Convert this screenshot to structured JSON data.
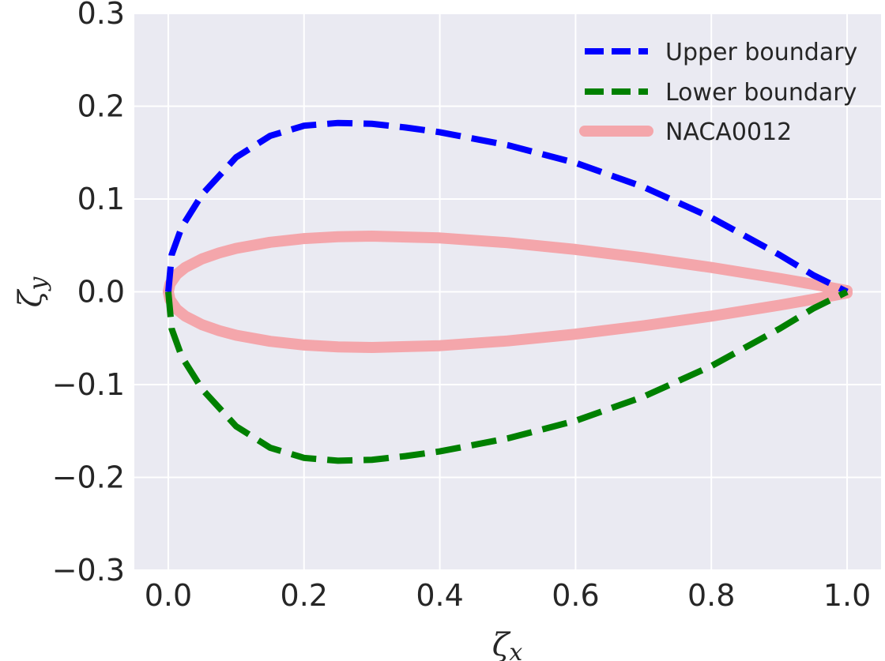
{
  "chart_data": {
    "type": "line",
    "xlabel_main": "ζ",
    "xlabel_sub": "x",
    "ylabel_main": "ζ",
    "ylabel_sub": "y",
    "xlim": [
      -0.05,
      1.05
    ],
    "ylim": [
      -0.3,
      0.3
    ],
    "xticks": [
      0.0,
      0.2,
      0.4,
      0.6,
      0.8,
      1.0
    ],
    "xtick_labels": [
      "0.0",
      "0.2",
      "0.4",
      "0.6",
      "0.8",
      "1.0"
    ],
    "yticks": [
      0.3,
      0.2,
      0.1,
      0.0,
      -0.1,
      -0.2,
      -0.3
    ],
    "ytick_labels": [
      "0.3",
      "0.2",
      "0.1",
      "0.0",
      "−0.1",
      "−0.2",
      "−0.3"
    ],
    "grid": true,
    "legend_position": "top-right",
    "background": "#eaeaf2",
    "series": [
      {
        "name": "Upper boundary",
        "color": "#0000ff",
        "style": "dashed",
        "x": [
          0.0,
          0.005,
          0.02,
          0.05,
          0.1,
          0.15,
          0.2,
          0.25,
          0.3,
          0.35,
          0.4,
          0.5,
          0.6,
          0.7,
          0.8,
          0.9,
          0.95,
          1.0
        ],
        "y": [
          0.0,
          0.04,
          0.07,
          0.105,
          0.145,
          0.168,
          0.179,
          0.182,
          0.181,
          0.177,
          0.172,
          0.158,
          0.139,
          0.113,
          0.08,
          0.04,
          0.018,
          0.0
        ]
      },
      {
        "name": "Lower boundary",
        "color": "#008000",
        "style": "dashed",
        "x": [
          0.0,
          0.005,
          0.02,
          0.05,
          0.1,
          0.15,
          0.2,
          0.25,
          0.3,
          0.35,
          0.4,
          0.5,
          0.6,
          0.7,
          0.8,
          0.9,
          0.95,
          1.0
        ],
        "y": [
          0.0,
          -0.04,
          -0.07,
          -0.105,
          -0.145,
          -0.168,
          -0.179,
          -0.182,
          -0.181,
          -0.177,
          -0.172,
          -0.158,
          -0.139,
          -0.113,
          -0.08,
          -0.04,
          -0.018,
          0.0
        ]
      },
      {
        "name": "NACA0012",
        "color": "#f4a6ab",
        "style": "solid",
        "x": [
          0.0,
          0.0025,
          0.0125,
          0.025,
          0.05,
          0.075,
          0.1,
          0.15,
          0.2,
          0.25,
          0.3,
          0.4,
          0.5,
          0.6,
          0.7,
          0.8,
          0.9,
          0.95,
          1.0
        ],
        "y": [
          0.0,
          0.0084,
          0.0189,
          0.0262,
          0.0356,
          0.0419,
          0.0468,
          0.0534,
          0.0574,
          0.0594,
          0.06,
          0.058,
          0.0529,
          0.0456,
          0.0366,
          0.0262,
          0.0145,
          0.0081,
          0.0013
        ],
        "mirror": true
      }
    ]
  }
}
